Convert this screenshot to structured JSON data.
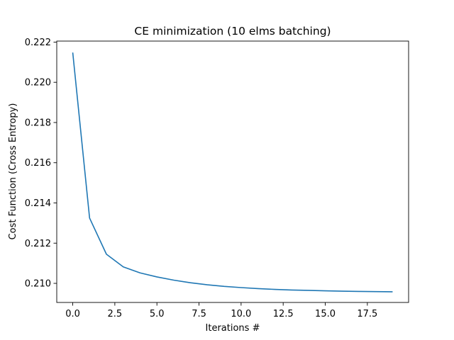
{
  "chart_data": {
    "type": "line",
    "title": "CE minimization (10 elms batching)",
    "xlabel": "Iterations #",
    "ylabel": "Cost Function (Cross Entropy)",
    "xlim": [
      -0.95,
      19.95
    ],
    "ylim": [
      0.20905,
      0.22205
    ],
    "grid": false,
    "xticks": [
      0.0,
      2.5,
      5.0,
      7.5,
      10.0,
      12.5,
      15.0,
      17.5
    ],
    "xtick_labels": [
      "0.0",
      "2.5",
      "5.0",
      "7.5",
      "10.0",
      "12.5",
      "15.0",
      "17.5"
    ],
    "yticks": [
      0.21,
      0.212,
      0.214,
      0.216,
      0.218,
      0.22,
      0.222
    ],
    "ytick_labels": [
      "0.210",
      "0.212",
      "0.214",
      "0.216",
      "0.218",
      "0.220",
      "0.222"
    ],
    "series": [
      {
        "color": "#1f77b4",
        "x": [
          0,
          1,
          2,
          3,
          4,
          5,
          6,
          7,
          8,
          9,
          10,
          11,
          12,
          13,
          14,
          15,
          16,
          17,
          18,
          19
        ],
        "y": [
          0.22148,
          0.21325,
          0.21145,
          0.21082,
          0.21052,
          0.21032,
          0.21016,
          0.21003,
          0.20993,
          0.20985,
          0.20979,
          0.20974,
          0.2097,
          0.20967,
          0.20965,
          0.20963,
          0.20961,
          0.2096,
          0.20959,
          0.20958
        ]
      }
    ]
  }
}
